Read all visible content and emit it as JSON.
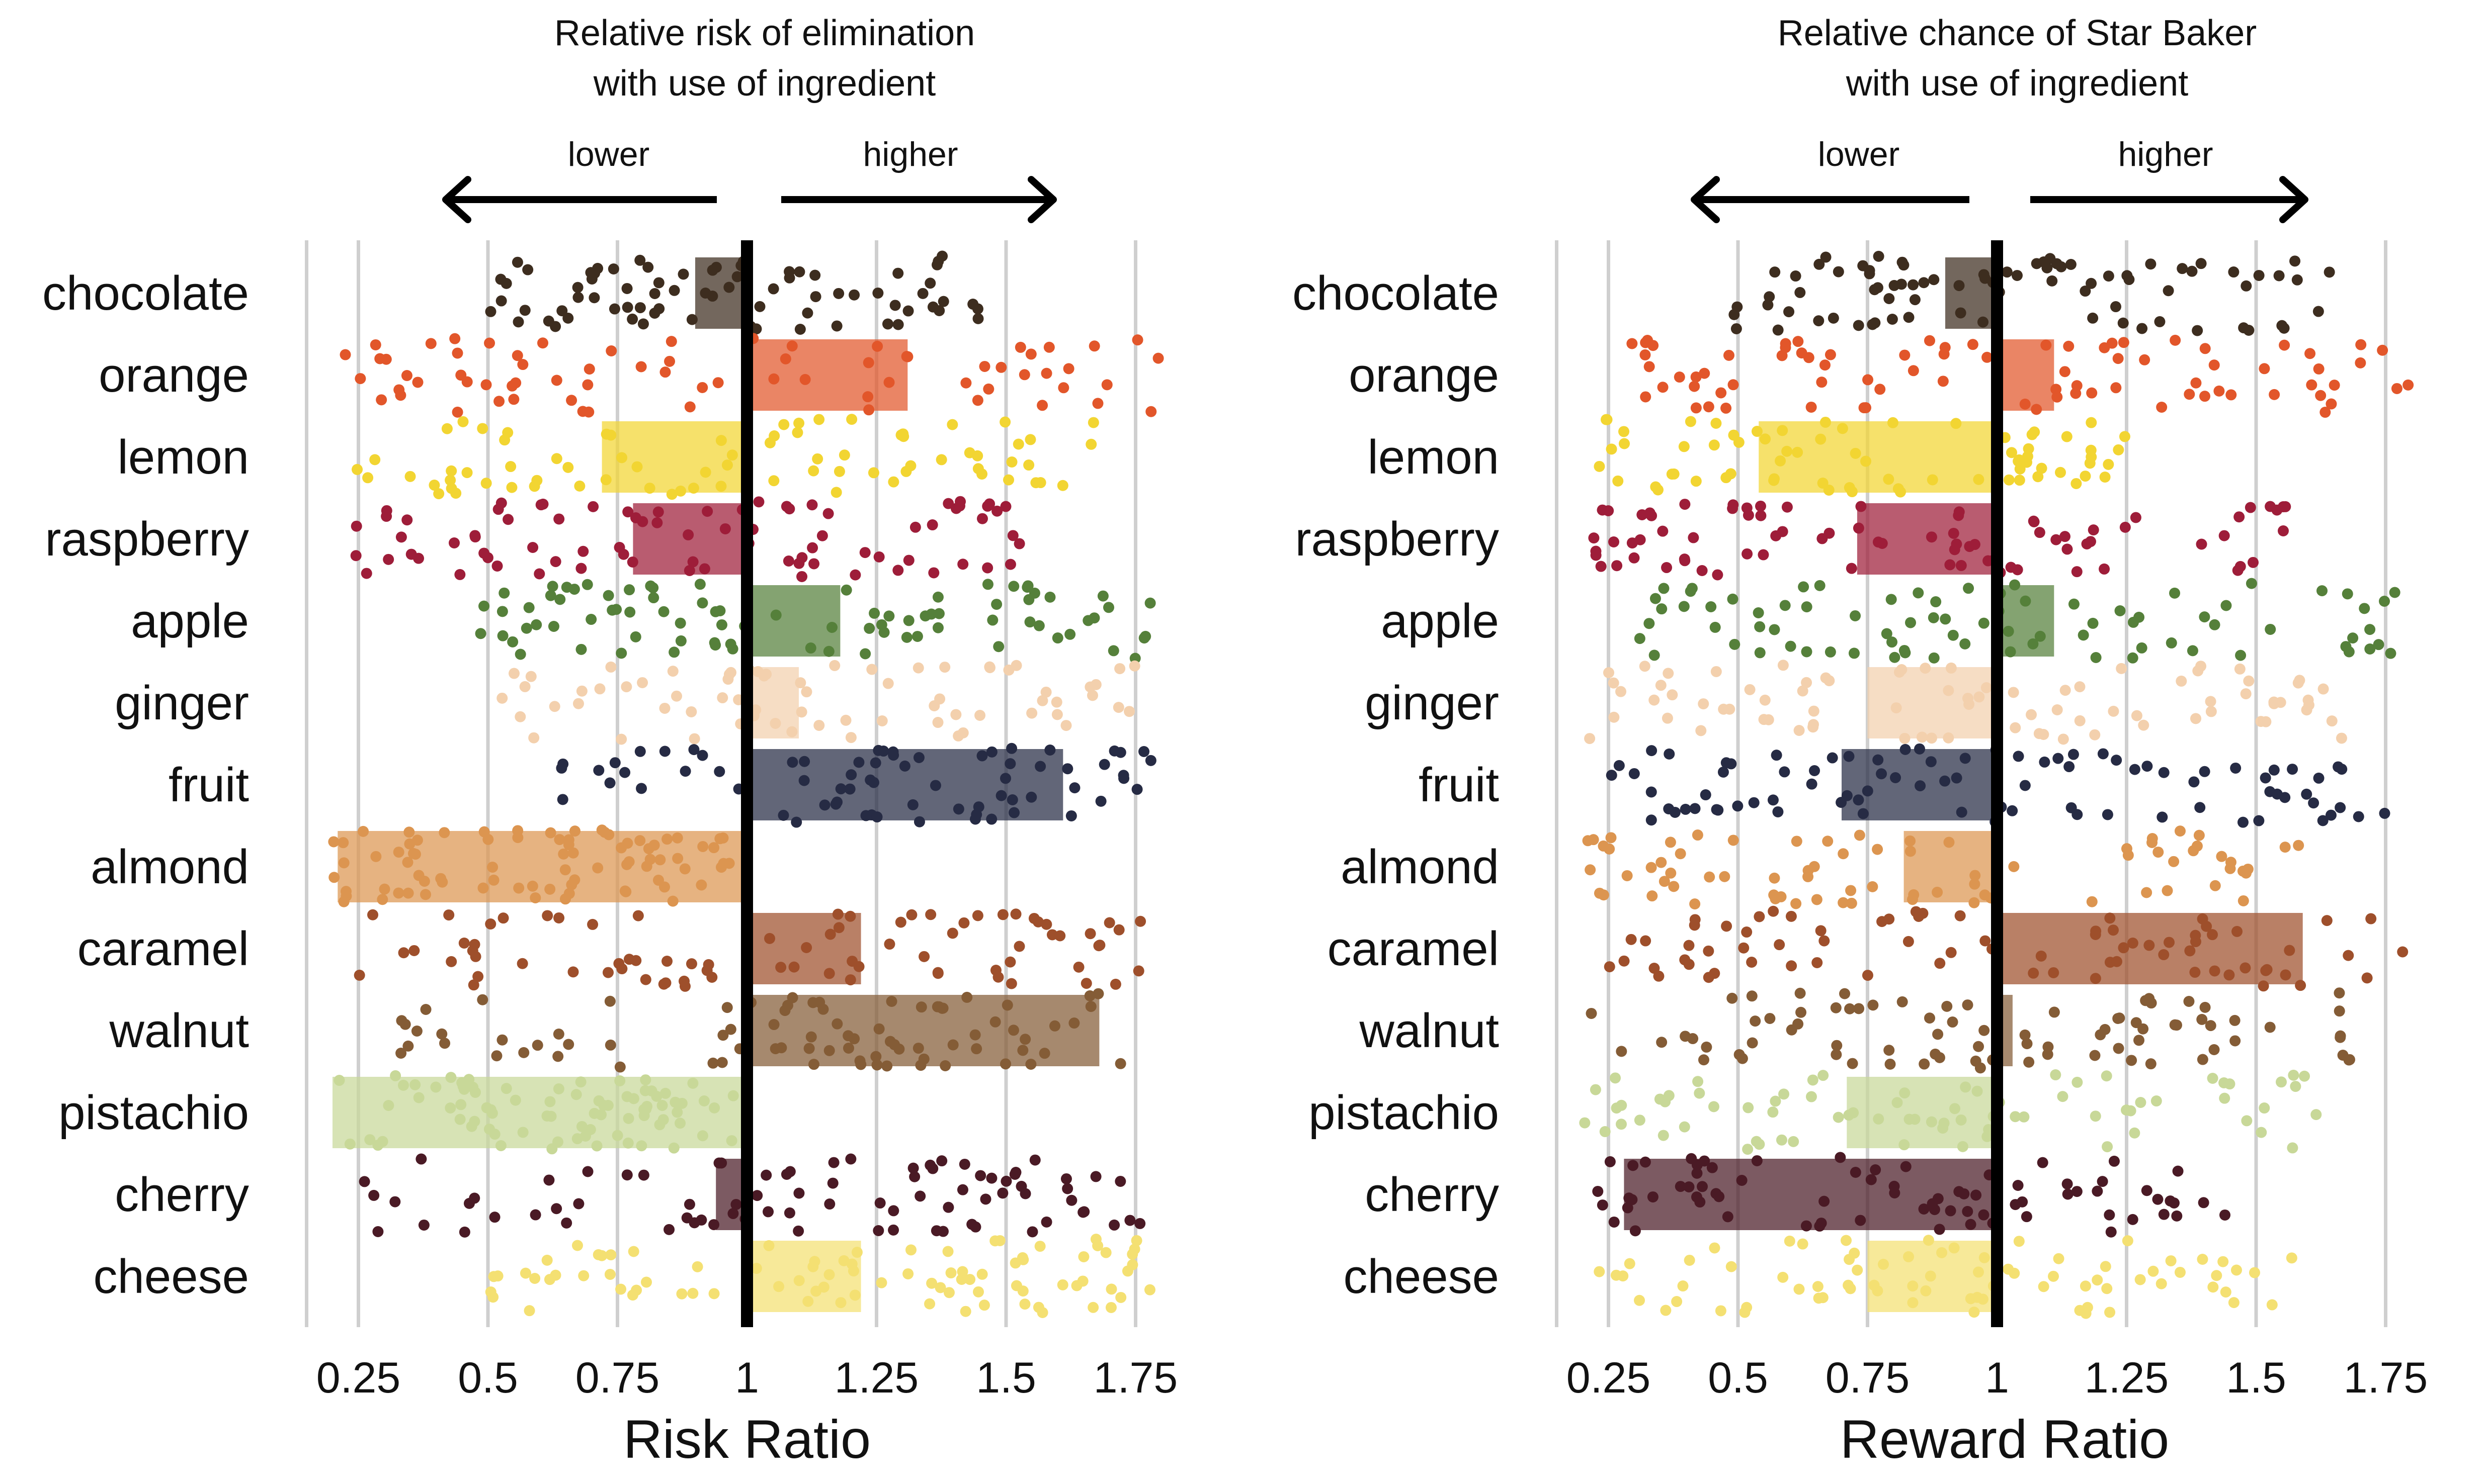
{
  "categories": [
    "chocolate",
    "orange",
    "lemon",
    "raspberry",
    "apple",
    "ginger",
    "fruit",
    "almond",
    "caramel",
    "walnut",
    "pistachio",
    "cherry",
    "cheese"
  ],
  "colors": {
    "chocolate": "#3d2d1f",
    "orange": "#e2562a",
    "lemon": "#f2d532",
    "raspberry": "#9e1d39",
    "apple": "#55803a",
    "ginger": "#f3d0ad",
    "fruit": "#262b44",
    "almond": "#dc9550",
    "caramel": "#9e4f2b",
    "walnut": "#845c36",
    "pistachio": "#c8d898",
    "cherry": "#4a1a25",
    "cheese": "#f4e072"
  },
  "panels": [
    {
      "title_line1": "Relative risk of elimination",
      "title_line2": "with use of ingredient",
      "lower_label": "lower",
      "higher_label": "higher",
      "xlabel": "Risk Ratio"
    },
    {
      "title_line1": "Relative chance of Star Baker",
      "title_line2": "with use of ingredient",
      "lower_label": "lower",
      "higher_label": "higher",
      "xlabel": "Reward Ratio"
    }
  ],
  "chart_data": [
    {
      "type": "bar",
      "title": "Relative risk of elimination with use of ingredient",
      "xlabel": "Risk Ratio",
      "reference_value": 1,
      "xlim": [
        0.12,
        1.83
      ],
      "xticks": [
        "0.25",
        "0.5",
        "0.75",
        "1",
        "1.25",
        "1.5",
        "1.75"
      ],
      "grid": true,
      "categories": [
        "chocolate",
        "orange",
        "lemon",
        "raspberry",
        "apple",
        "ginger",
        "fruit",
        "almond",
        "caramel",
        "walnut",
        "pistachio",
        "cherry",
        "cheese"
      ],
      "values": [
        0.9,
        1.31,
        0.72,
        0.78,
        1.18,
        1.1,
        1.61,
        0.21,
        1.22,
        1.68,
        0.2,
        0.94,
        1.22
      ],
      "jitter": [
        {
          "min": 0.5,
          "max": 1.46,
          "n": 75
        },
        {
          "min": 0.22,
          "max": 1.8,
          "n": 70
        },
        {
          "min": 0.22,
          "max": 1.68,
          "n": 75
        },
        {
          "min": 0.22,
          "max": 1.57,
          "n": 80
        },
        {
          "min": 0.48,
          "max": 1.78,
          "n": 85
        },
        {
          "min": 0.48,
          "max": 1.75,
          "n": 70
        },
        {
          "min": 0.64,
          "max": 1.78,
          "n": 70
        },
        {
          "min": 0.2,
          "max": 0.98,
          "n": 80
        },
        {
          "min": 0.24,
          "max": 1.76,
          "n": 80
        },
        {
          "min": 0.24,
          "max": 1.73,
          "n": 80
        },
        {
          "min": 0.2,
          "max": 0.98,
          "n": 80
        },
        {
          "min": 0.24,
          "max": 1.76,
          "n": 80
        },
        {
          "min": 0.5,
          "max": 1.79,
          "n": 85
        }
      ]
    },
    {
      "type": "bar",
      "title": "Relative chance of Star Baker with use of ingredient",
      "xlabel": "Reward Ratio",
      "reference_value": 1,
      "xlim": [
        0.12,
        1.83
      ],
      "xticks": [
        "0.25",
        "0.5",
        "0.75",
        "1",
        "1.25",
        "1.5",
        "1.75"
      ],
      "grid": true,
      "categories": [
        "chocolate",
        "orange",
        "lemon",
        "raspberry",
        "apple",
        "ginger",
        "fruit",
        "almond",
        "caramel",
        "walnut",
        "pistachio",
        "cherry",
        "cheese"
      ],
      "values": [
        0.9,
        1.11,
        0.54,
        0.73,
        1.11,
        0.75,
        0.7,
        0.82,
        1.59,
        1.03,
        0.71,
        0.28,
        0.75
      ],
      "jitter": [
        {
          "min": 0.48,
          "max": 1.67,
          "n": 80
        },
        {
          "min": 0.28,
          "max": 1.8,
          "n": 80
        },
        {
          "min": 0.21,
          "max": 1.25,
          "n": 70
        },
        {
          "min": 0.22,
          "max": 1.58,
          "n": 80
        },
        {
          "min": 0.3,
          "max": 1.79,
          "n": 80
        },
        {
          "min": 0.21,
          "max": 1.68,
          "n": 80
        },
        {
          "min": 0.21,
          "max": 1.75,
          "n": 85
        },
        {
          "min": 0.21,
          "max": 1.59,
          "n": 75
        },
        {
          "min": 0.24,
          "max": 1.8,
          "n": 75
        },
        {
          "min": 0.21,
          "max": 1.76,
          "n": 80
        },
        {
          "min": 0.2,
          "max": 1.62,
          "n": 75
        },
        {
          "min": 0.21,
          "max": 1.46,
          "n": 75
        },
        {
          "min": 0.21,
          "max": 1.58,
          "n": 75
        }
      ]
    }
  ]
}
